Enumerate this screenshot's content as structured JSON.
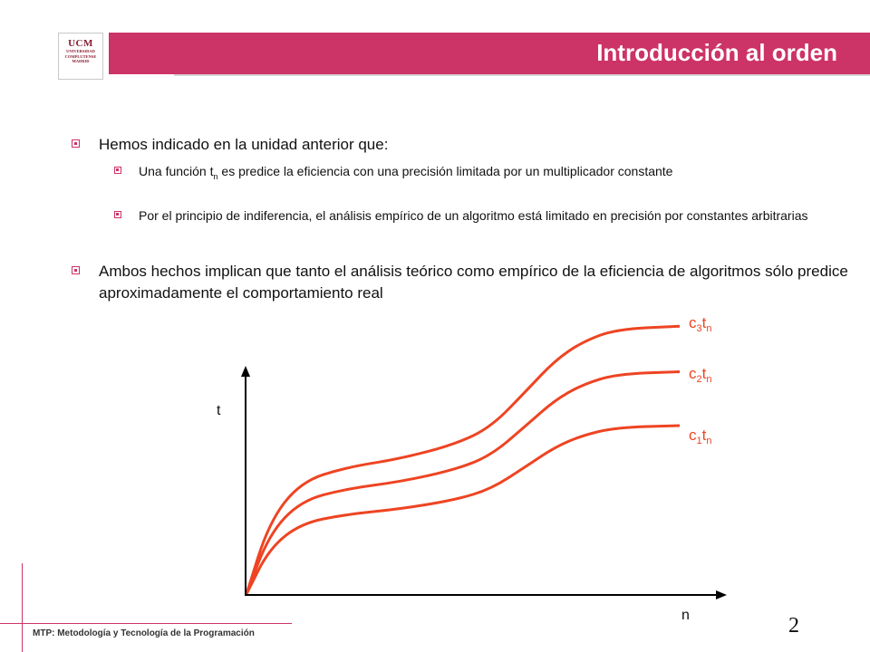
{
  "logo": {
    "initials": "UCM",
    "line1": "UNIVERSIDAD",
    "line2": "COMPLUTENSE",
    "line3": "MADRID"
  },
  "header": {
    "title": "Introducción al orden"
  },
  "bullets": [
    {
      "text": "Hemos indicado en la unidad anterior que:"
    },
    {
      "pre": "Una función t",
      "sub": "n",
      "post": " es predice la eficiencia con una precisión limitada por un multiplicador constante"
    },
    {
      "text": "Por el principio de indiferencia, el análisis empírico de un algoritmo está limitado en precisión por constantes arbitrarias"
    },
    {
      "text": "Ambos hechos implican que tanto el análisis teórico como empírico de la eficiencia de algoritmos sólo predice aproximadamente el comportamiento real"
    }
  ],
  "chart_data": {
    "type": "line",
    "xlabel": "n",
    "ylabel": "t",
    "curve_color": "#ee4422",
    "axis_color": "#000000",
    "series": [
      {
        "name": "c1tn",
        "label_base": "c",
        "label_sub1": "1",
        "label_mid": "t",
        "label_sub2": "n",
        "scale": 1
      },
      {
        "name": "c2tn",
        "label_base": "c",
        "label_sub1": "2",
        "label_mid": "t",
        "label_sub2": "n",
        "scale": 1.32
      },
      {
        "name": "c3tn",
        "label_base": "c",
        "label_sub1": "3",
        "label_mid": "t",
        "label_sub2": "n",
        "scale": 1.59
      }
    ]
  },
  "slide_number": "2",
  "footer": {
    "text": "MTP: Metodología y Tecnología de la Programación"
  }
}
